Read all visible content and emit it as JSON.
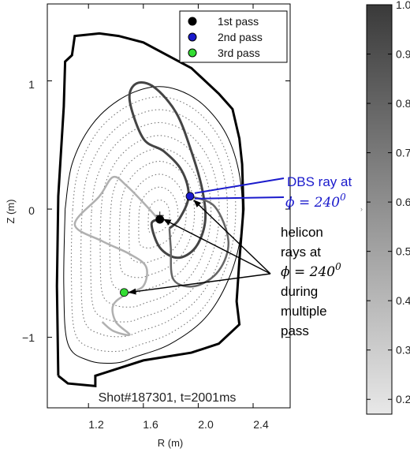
{
  "chart_data": {
    "type": "line",
    "xlabel": "R (m)",
    "ylabel": "Z (m)",
    "xlim": [
      0.9,
      2.67
    ],
    "ylim": [
      -1.55,
      1.6
    ],
    "x_ticks": [
      1.2,
      1.6,
      2.0,
      2.4
    ],
    "x_tick_labels": [
      "1.2",
      "1.6",
      "2.0",
      "2.4"
    ],
    "y_ticks": [
      1,
      0,
      -1
    ],
    "y_tick_labels": [
      "1",
      "0",
      "−1"
    ],
    "legend": {
      "placement": "top-right",
      "entries": [
        {
          "label": "1st pass",
          "color": "#000000"
        },
        {
          "label": "2nd pass",
          "color": "#1a1acc"
        },
        {
          "label": "3rd pass",
          "color": "#33dd33"
        }
      ]
    },
    "colorbar": {
      "ticks": [
        1.0,
        0.9,
        0.8,
        0.7,
        0.6,
        0.5,
        0.4,
        0.3,
        0.2
      ],
      "tick_labels": [
        "1.0",
        "0.9",
        "0.8",
        "0.7",
        "0.6",
        "0.5",
        "0.4",
        "0.3",
        "0.2"
      ],
      "range": [
        0.17,
        1.0
      ]
    },
    "wall_outline": [
      [
        0.98,
        -1.3
      ],
      [
        0.97,
        -0.6
      ],
      [
        0.98,
        0.1
      ],
      [
        1.02,
        0.8
      ],
      [
        1.03,
        1.15
      ],
      [
        1.08,
        1.2
      ],
      [
        1.1,
        1.35
      ],
      [
        1.28,
        1.37
      ],
      [
        1.42,
        1.35
      ],
      [
        1.6,
        1.3
      ],
      [
        1.95,
        1.1
      ],
      [
        2.15,
        0.9
      ],
      [
        2.25,
        0.78
      ],
      [
        2.3,
        0.55
      ],
      [
        2.32,
        0.35
      ],
      [
        2.33,
        0.0
      ],
      [
        2.3,
        -0.4
      ],
      [
        2.28,
        -0.72
      ],
      [
        2.3,
        -0.9
      ],
      [
        2.15,
        -1.05
      ],
      [
        1.95,
        -1.12
      ],
      [
        1.6,
        -1.18
      ],
      [
        1.25,
        -1.3
      ],
      [
        1.25,
        -1.38
      ],
      [
        1.05,
        -1.36
      ],
      [
        0.98,
        -1.3
      ]
    ],
    "separatrix": [
      [
        1.03,
        -0.0
      ],
      [
        1.08,
        0.35
      ],
      [
        1.22,
        0.65
      ],
      [
        1.42,
        0.85
      ],
      [
        1.65,
        0.95
      ],
      [
        1.85,
        0.93
      ],
      [
        2.05,
        0.8
      ],
      [
        2.22,
        0.55
      ],
      [
        2.31,
        0.2
      ],
      [
        2.31,
        -0.2
      ],
      [
        2.22,
        -0.55
      ],
      [
        2.05,
        -0.85
      ],
      [
        1.8,
        -1.05
      ],
      [
        1.55,
        -1.15
      ],
      [
        1.4,
        -1.2
      ],
      [
        1.2,
        -1.18
      ],
      [
        1.05,
        -1.05
      ],
      [
        1.02,
        -0.6
      ],
      [
        1.03,
        -0.0
      ]
    ],
    "magnetic_axis": [
      1.72,
      -0.05
    ],
    "flux_surface_levels": [
      0.12,
      0.22,
      0.32,
      0.42,
      0.52,
      0.62,
      0.72,
      0.82,
      0.92
    ],
    "series": [
      {
        "name": "1st pass",
        "color": "#444444",
        "points": [
          [
            1.79,
            -0.15
          ],
          [
            1.86,
            -0.08
          ],
          [
            1.93,
            0.1
          ],
          [
            1.88,
            0.3
          ],
          [
            1.75,
            0.45
          ],
          [
            1.6,
            0.55
          ],
          [
            1.5,
            0.85
          ],
          [
            1.55,
            0.98
          ],
          [
            1.68,
            0.95
          ],
          [
            1.84,
            0.75
          ],
          [
            1.95,
            0.45
          ],
          [
            2.03,
            0.15
          ],
          [
            2.05,
            -0.1
          ],
          [
            1.98,
            -0.3
          ],
          [
            1.85,
            -0.38
          ],
          [
            1.72,
            -0.3
          ],
          [
            1.66,
            -0.12
          ],
          [
            1.71,
            -0.08
          ]
        ]
      },
      {
        "name": "2nd pass",
        "color": "#666666",
        "points": [
          [
            1.94,
            0.1
          ],
          [
            2.12,
            0.02
          ],
          [
            2.22,
            -0.25
          ],
          [
            2.15,
            -0.48
          ],
          [
            1.98,
            -0.6
          ],
          [
            1.82,
            -0.55
          ],
          [
            1.8,
            -0.3
          ],
          [
            1.79,
            -0.15
          ]
        ]
      },
      {
        "name": "3rd pass",
        "color": "#b0b0b0",
        "points": [
          [
            1.71,
            -0.08
          ],
          [
            1.6,
            0.05
          ],
          [
            1.48,
            0.18
          ],
          [
            1.38,
            0.25
          ],
          [
            1.28,
            0.1
          ],
          [
            1.1,
            -0.12
          ],
          [
            1.3,
            -0.25
          ],
          [
            1.5,
            -0.35
          ],
          [
            1.62,
            -0.45
          ],
          [
            1.6,
            -0.6
          ],
          [
            1.48,
            -0.66
          ],
          [
            1.38,
            -0.75
          ],
          [
            1.4,
            -0.88
          ],
          [
            1.5,
            -0.98
          ],
          [
            1.38,
            -0.95
          ],
          [
            1.3,
            -0.88
          ]
        ]
      }
    ],
    "pass_points": [
      {
        "name": "1st pass",
        "color": "#000000",
        "R": 1.72,
        "Z": -0.08
      },
      {
        "name": "2nd pass",
        "color": "#1a1acc",
        "R": 1.94,
        "Z": 0.1
      },
      {
        "name": "3rd pass",
        "color": "#33dd33",
        "R": 1.46,
        "Z": -0.65
      }
    ],
    "annotations": {
      "dbs_line1": "DBS ray at",
      "dbs_math": "ϕ = 240",
      "dbs_sup": "0",
      "helicon_lines": [
        "helicon",
        "rays at"
      ],
      "helicon_math": "ϕ = 240",
      "helicon_sup": "0",
      "helicon_lines_after": [
        "during",
        "multiple",
        "pass"
      ],
      "shot": "Shot#187301, t=2001ms"
    }
  }
}
